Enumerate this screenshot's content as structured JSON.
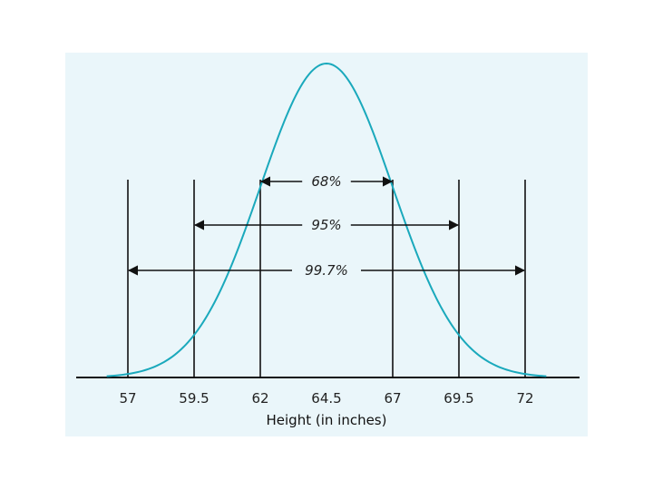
{
  "chart_data": {
    "type": "line",
    "title": "",
    "xlabel": "Height (in inches)",
    "ylabel": "",
    "distribution": {
      "mean": 64.5,
      "sd": 2.5
    },
    "xlim": [
      55.5,
      73.5
    ],
    "x_ticks": [
      "57",
      "59.5",
      "62",
      "64.5",
      "67",
      "69.5",
      "72"
    ],
    "x_tick_values": [
      57,
      59.5,
      62,
      64.5,
      67,
      69.5,
      72
    ],
    "boundary_lines": [
      57,
      59.5,
      62,
      67,
      69.5,
      72
    ],
    "intervals": [
      {
        "label": "68%",
        "from": 62,
        "to": 67
      },
      {
        "label": "95%",
        "from": 59.5,
        "to": 69.5
      },
      {
        "label": "99.7%",
        "from": 57,
        "to": 72
      }
    ],
    "grid": false,
    "colors": {
      "curve": "#1aa9bc",
      "lines": "#111111",
      "background": "#eaf6fa"
    }
  }
}
